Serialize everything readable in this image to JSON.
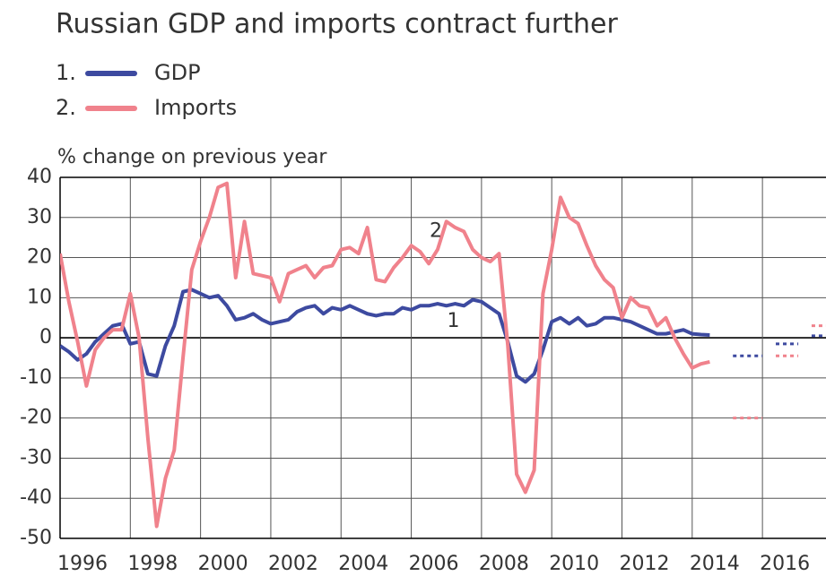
{
  "chart_data": {
    "type": "line",
    "title": "Russian GDP and imports contract further",
    "ylabel": "% change on previous year",
    "xlim": [
      1996,
      2017.81
    ],
    "xticks": [
      1996,
      1998,
      2000,
      2002,
      2004,
      2006,
      2008,
      2010,
      2012,
      2014,
      2016
    ],
    "ylim": [
      -50,
      40
    ],
    "yticks": [
      -50,
      -40,
      -30,
      -20,
      -10,
      0,
      10,
      20,
      30,
      40
    ],
    "grid": true,
    "x": [
      1996,
      1996.25,
      1996.5,
      1996.75,
      1997,
      1997.25,
      1997.5,
      1997.75,
      1998,
      1998.25,
      1998.5,
      1998.75,
      1999,
      1999.25,
      1999.5,
      1999.75,
      2000,
      2000.25,
      2000.5,
      2000.75,
      2001,
      2001.25,
      2001.5,
      2001.75,
      2002,
      2002.25,
      2002.5,
      2002.75,
      2003,
      2003.25,
      2003.5,
      2003.75,
      2004,
      2004.25,
      2004.5,
      2004.75,
      2005,
      2005.25,
      2005.5,
      2005.75,
      2006,
      2006.25,
      2006.5,
      2006.75,
      2007,
      2007.25,
      2007.5,
      2007.75,
      2008,
      2008.25,
      2008.5,
      2008.75,
      2009,
      2009.25,
      2009.5,
      2009.75,
      2010,
      2010.25,
      2010.5,
      2010.75,
      2011,
      2011.25,
      2011.5,
      2011.75,
      2012,
      2012.25,
      2012.5,
      2012.75,
      2013,
      2013.25,
      2013.5,
      2013.75,
      2014,
      2014.25,
      2014.5
    ],
    "series": [
      {
        "name": "GDP",
        "number": "1.",
        "color": "#3d4aa0",
        "values": [
          -2,
          -3.5,
          -5.5,
          -4,
          -1,
          1,
          3,
          3.5,
          -1.5,
          -1,
          -9,
          -9.5,
          -2,
          3,
          11.5,
          12,
          11,
          10,
          10.5,
          8,
          4.5,
          5,
          6,
          4.5,
          3.5,
          4,
          4.5,
          6.5,
          7.5,
          8,
          6,
          7.5,
          7,
          8,
          7,
          6,
          5.5,
          6,
          6,
          7.5,
          7,
          8,
          8,
          8.5,
          8,
          8.5,
          8,
          9.5,
          9,
          7.5,
          6,
          -1,
          -9.5,
          -11,
          -9,
          -3,
          4,
          5,
          3.5,
          5,
          3,
          3.5,
          5,
          5,
          4.5,
          4,
          3,
          2,
          1,
          1,
          1.5,
          2,
          1,
          0.8,
          0.7
        ],
        "forecast": [
          {
            "x": [
              2015.16,
              2016.0
            ],
            "value": -4.5
          },
          {
            "x": [
              2016.38,
              2017.02
            ],
            "value": -1.5
          },
          {
            "x": [
              2017.4,
              2017.81
            ],
            "value": 0.5
          }
        ]
      },
      {
        "name": "Imports",
        "number": "2.",
        "color": "#f0828c",
        "values": [
          21,
          9,
          -1,
          -12,
          -3,
          0,
          2,
          2,
          11,
          0,
          -25,
          -47,
          -35,
          -28,
          -5,
          17,
          24,
          30,
          37.5,
          38.5,
          15,
          29,
          16,
          15.5,
          15,
          9,
          16,
          17,
          18,
          15,
          17.5,
          18,
          22,
          22.5,
          21,
          27.5,
          14.5,
          14,
          17.5,
          20,
          23,
          21.5,
          18.5,
          22,
          29,
          27.5,
          26.5,
          22,
          20,
          19,
          21,
          -2,
          -34,
          -38.5,
          -33,
          11,
          22,
          35,
          30,
          28.5,
          23,
          18,
          14.5,
          12.5,
          5,
          10,
          8,
          7.5,
          3,
          5,
          0,
          -4,
          -7.5,
          -6.5,
          -6
        ],
        "forecast": [
          {
            "x": [
              2015.16,
              2016.0
            ],
            "value": -20
          },
          {
            "x": [
              2016.38,
              2017.02
            ],
            "value": -4.5
          },
          {
            "x": [
              2017.4,
              2017.81
            ],
            "value": 3
          }
        ]
      }
    ],
    "annotations": [
      {
        "text": "1",
        "x": 2007.2,
        "y": 4
      },
      {
        "text": "2",
        "x": 2006.7,
        "y": 26.5
      }
    ]
  }
}
